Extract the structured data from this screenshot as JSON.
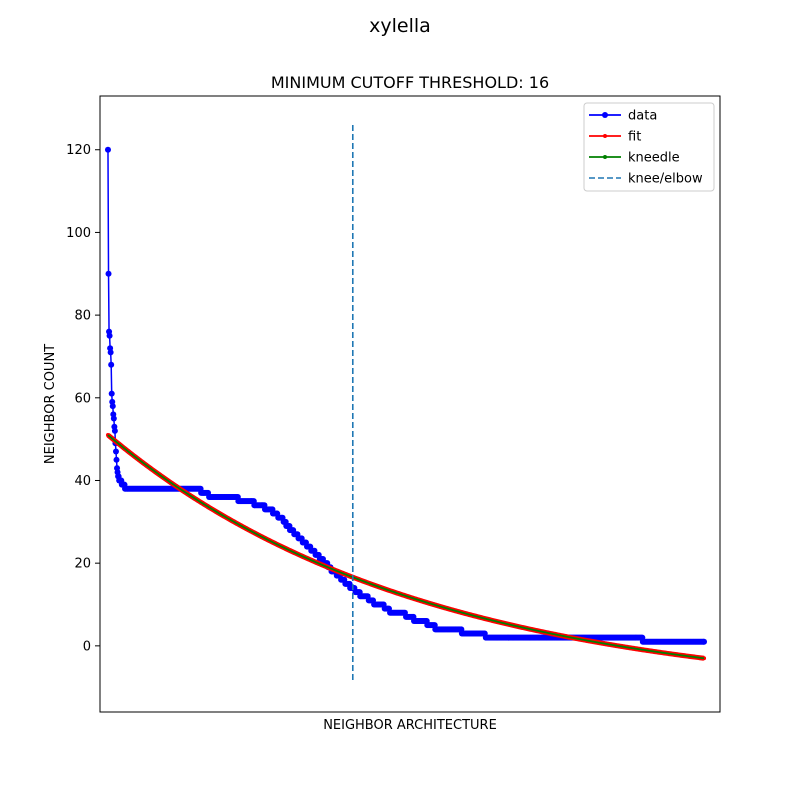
{
  "figure_title": "xylella",
  "chart_data": {
    "type": "line",
    "title": "MINIMUM CUTOFF THRESHOLD: 16",
    "xlabel": "NEIGHBOR ARCHITECTURE",
    "ylabel": "NEIGHBOR COUNT",
    "xlim": [
      -15,
      1150
    ],
    "ylim": [
      -16,
      133
    ],
    "yticks": [
      0,
      20,
      40,
      60,
      80,
      100,
      120
    ],
    "xticks_visible": false,
    "grid": false,
    "legend_position": "top-right",
    "knee_x": 460,
    "knee_line_ymin": -9,
    "knee_line_ymax": 126,
    "fit_start": 51,
    "fit_end": -3,
    "fit_curvature": 1.9,
    "data_steps": [
      [
        0,
        120
      ],
      [
        1,
        90
      ],
      [
        2,
        76
      ],
      [
        3,
        75
      ],
      [
        4,
        72
      ],
      [
        5,
        71
      ],
      [
        6,
        68
      ],
      [
        7,
        61
      ],
      [
        8,
        59
      ],
      [
        9,
        58
      ],
      [
        10,
        56
      ],
      [
        11,
        55
      ],
      [
        12,
        53
      ],
      [
        13,
        52
      ],
      [
        14,
        49
      ],
      [
        15,
        47
      ],
      [
        16,
        45
      ],
      [
        17,
        43
      ],
      [
        18,
        42
      ],
      [
        19,
        41
      ],
      [
        21,
        40
      ],
      [
        26,
        39
      ],
      [
        32,
        38
      ],
      [
        150,
        38
      ],
      [
        175,
        37
      ],
      [
        180,
        37
      ],
      [
        190,
        36
      ],
      [
        240,
        36
      ],
      [
        245,
        35
      ],
      [
        270,
        35
      ],
      [
        275,
        34
      ],
      [
        290,
        34
      ],
      [
        295,
        33
      ],
      [
        305,
        33
      ],
      [
        310,
        32
      ],
      [
        320,
        31
      ],
      [
        330,
        30
      ],
      [
        335,
        29
      ],
      [
        342,
        28
      ],
      [
        350,
        27
      ],
      [
        358,
        26
      ],
      [
        366,
        25
      ],
      [
        374,
        24
      ],
      [
        382,
        23
      ],
      [
        390,
        22
      ],
      [
        398,
        21
      ],
      [
        406,
        20
      ],
      [
        414,
        19
      ],
      [
        420,
        18
      ],
      [
        430,
        17
      ],
      [
        438,
        16
      ],
      [
        446,
        15
      ],
      [
        455,
        14
      ],
      [
        465,
        13
      ],
      [
        474,
        12
      ],
      [
        490,
        11
      ],
      [
        500,
        10
      ],
      [
        520,
        9
      ],
      [
        530,
        8
      ],
      [
        560,
        7
      ],
      [
        575,
        6
      ],
      [
        600,
        5
      ],
      [
        615,
        4
      ],
      [
        660,
        4
      ],
      [
        665,
        3
      ],
      [
        700,
        3
      ],
      [
        710,
        2
      ],
      [
        1000,
        2
      ],
      [
        1005,
        1
      ],
      [
        1120,
        1
      ]
    ],
    "series": [
      {
        "name": "data",
        "color": "#0000ff",
        "marker": "circle"
      },
      {
        "name": "fit",
        "color": "#ff0000",
        "marker": "point"
      },
      {
        "name": "kneedle",
        "color": "#008000",
        "marker": "point"
      },
      {
        "name": "knee/elbow",
        "color": "#1f77b4",
        "style": "dashed"
      }
    ]
  }
}
